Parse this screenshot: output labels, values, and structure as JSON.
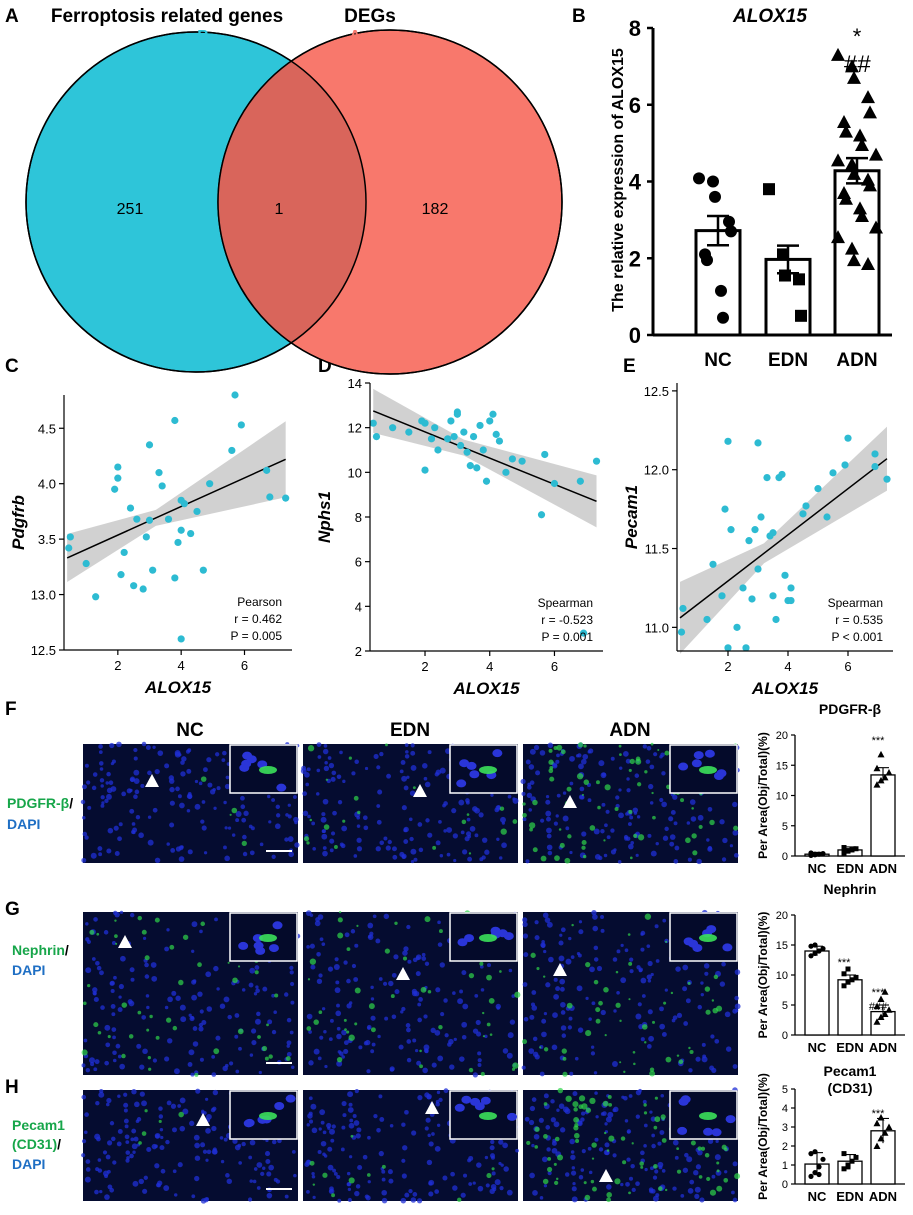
{
  "panel_letters": {
    "A": "A",
    "B": "B",
    "C": "C",
    "D": "D",
    "E": "E",
    "F": "F",
    "G": "G",
    "H": "H"
  },
  "colors": {
    "teal": "#2ec5d9",
    "salmon": "#f8786c",
    "overlap": "#d9655b",
    "blue_text": "#1f6fc4",
    "green_text": "#17a64a",
    "red_text": "#e0453a",
    "dot": "#2dbbd2",
    "band": "#c9c9c9"
  },
  "venn": {
    "left_title": "Ferroptosis related genes",
    "left_letter": "B",
    "right_title": "DEGs",
    "right_letter": "A",
    "left_only": "251",
    "overlap": "1",
    "right_only": "182"
  },
  "chart_data": [
    {
      "id": "B",
      "type": "bar",
      "title": "ALOX15",
      "ylabel": "The relative expression of ALOX15",
      "categories": [
        "NC",
        "EDN",
        "ADN"
      ],
      "values": [
        2.72,
        1.97,
        4.28
      ],
      "sem": [
        0.38,
        0.36,
        0.33
      ],
      "ylim": [
        0,
        8
      ],
      "yticks": [
        "0",
        "2",
        "4",
        "6",
        "8"
      ],
      "points": [
        [
          4.08,
          4.0,
          3.6,
          2.95,
          2.7,
          2.1,
          1.95,
          1.15,
          0.45
        ],
        [
          3.8,
          2.1,
          1.55,
          1.45,
          0.5
        ],
        [
          7.3,
          7.0,
          6.7,
          6.2,
          5.8,
          5.55,
          5.3,
          5.2,
          4.95,
          4.7,
          4.55,
          4.45,
          4.2,
          4.05,
          3.9,
          3.7,
          3.55,
          3.3,
          3.1,
          2.8,
          2.55,
          2.25,
          1.95,
          1.85
        ]
      ],
      "annotations": [
        "*",
        "##"
      ]
    },
    {
      "id": "C",
      "type": "scatter",
      "xlabel": "ALOX15",
      "ylabel": "Pdgfrb",
      "xlim": [
        0.3,
        7.5
      ],
      "ylim": [
        12.5,
        4.8
      ],
      "ytick_labels": [
        "12.5",
        "13.0",
        "3.5",
        "4.0",
        "4.5"
      ],
      "xticks": [
        "2",
        "4",
        "6"
      ],
      "stat": {
        "method": "Pearson",
        "r": "r = 0.462",
        "p": "P = 0.005"
      },
      "fit": {
        "y0": 13.33,
        "y1": 4.22,
        "x0": 0.4,
        "x1": 7.3
      },
      "points": [
        [
          0.45,
          3.42
        ],
        [
          0.5,
          3.52
        ],
        [
          1.0,
          3.28
        ],
        [
          1.3,
          2.98
        ],
        [
          1.9,
          3.95
        ],
        [
          2.0,
          4.15
        ],
        [
          2.0,
          4.05
        ],
        [
          2.1,
          3.18
        ],
        [
          2.2,
          3.38
        ],
        [
          2.4,
          3.78
        ],
        [
          2.5,
          3.08
        ],
        [
          2.6,
          3.68
        ],
        [
          2.8,
          3.05
        ],
        [
          2.9,
          3.52
        ],
        [
          3.0,
          3.67
        ],
        [
          3.0,
          4.35
        ],
        [
          3.1,
          3.22
        ],
        [
          3.3,
          4.1
        ],
        [
          3.4,
          3.98
        ],
        [
          3.6,
          3.68
        ],
        [
          3.8,
          4.57
        ],
        [
          3.8,
          3.15
        ],
        [
          3.9,
          3.47
        ],
        [
          4.0,
          3.85
        ],
        [
          4.0,
          3.58
        ],
        [
          4.0,
          2.6
        ],
        [
          4.1,
          3.82
        ],
        [
          4.3,
          3.55
        ],
        [
          4.5,
          3.75
        ],
        [
          4.7,
          3.22
        ],
        [
          4.9,
          4.0
        ],
        [
          5.6,
          4.3
        ],
        [
          5.7,
          4.8
        ],
        [
          5.9,
          4.53
        ],
        [
          6.7,
          4.12
        ],
        [
          6.8,
          3.88
        ],
        [
          7.3,
          3.87
        ]
      ]
    },
    {
      "id": "D",
      "type": "scatter",
      "xlabel": "ALOX15",
      "ylabel": "Nphs1",
      "xlim": [
        0.3,
        7.5
      ],
      "ylim": [
        2,
        14
      ],
      "yticks": [
        "2",
        "4",
        "6",
        "8",
        "10",
        "12",
        "14"
      ],
      "xticks": [
        "2",
        "4",
        "6"
      ],
      "stat": {
        "method": "Spearman",
        "r": "r = -0.523",
        "p": "P = 0.001"
      },
      "fit": {
        "y0": 12.75,
        "y1": 8.7,
        "x0": 0.4,
        "x1": 7.3
      },
      "points": [
        [
          0.4,
          12.2
        ],
        [
          0.5,
          11.6
        ],
        [
          1.0,
          12.0
        ],
        [
          1.5,
          11.8
        ],
        [
          1.9,
          12.3
        ],
        [
          2.0,
          12.2
        ],
        [
          2.0,
          10.1
        ],
        [
          2.2,
          11.5
        ],
        [
          2.3,
          12.0
        ],
        [
          2.4,
          11.0
        ],
        [
          2.7,
          11.5
        ],
        [
          2.8,
          12.3
        ],
        [
          2.9,
          11.6
        ],
        [
          3.0,
          12.7
        ],
        [
          3.0,
          12.6
        ],
        [
          3.1,
          11.2
        ],
        [
          3.2,
          11.8
        ],
        [
          3.3,
          10.9
        ],
        [
          3.4,
          10.3
        ],
        [
          3.5,
          11.6
        ],
        [
          3.6,
          10.2
        ],
        [
          3.7,
          12.1
        ],
        [
          3.8,
          11.0
        ],
        [
          3.9,
          9.6
        ],
        [
          4.0,
          12.3
        ],
        [
          4.1,
          12.6
        ],
        [
          4.2,
          11.7
        ],
        [
          4.3,
          11.4
        ],
        [
          4.5,
          10.0
        ],
        [
          4.7,
          10.6
        ],
        [
          5.0,
          10.5
        ],
        [
          5.6,
          8.1
        ],
        [
          5.7,
          10.8
        ],
        [
          6.0,
          9.5
        ],
        [
          6.8,
          9.6
        ],
        [
          6.9,
          2.8
        ],
        [
          7.3,
          10.5
        ]
      ]
    },
    {
      "id": "E",
      "type": "scatter",
      "xlabel": "ALOX15",
      "ylabel": "Pecam1",
      "xlim": [
        0.3,
        7.5
      ],
      "ylim": [
        10.85,
        12.55
      ],
      "yticks": [
        "11.0",
        "11.5",
        "12.0",
        "12.5"
      ],
      "xticks": [
        "2",
        "4",
        "6"
      ],
      "stat": {
        "method": "Spearman",
        "r": "r = 0.535",
        "p": "P < 0.001"
      },
      "fit": {
        "y0": 11.06,
        "y1": 12.07,
        "x0": 0.4,
        "x1": 7.3
      },
      "points": [
        [
          0.45,
          10.97
        ],
        [
          0.5,
          11.12
        ],
        [
          1.3,
          11.05
        ],
        [
          1.5,
          11.4
        ],
        [
          1.8,
          11.2
        ],
        [
          1.9,
          11.75
        ],
        [
          2.0,
          12.18
        ],
        [
          2.0,
          10.87
        ],
        [
          2.1,
          11.62
        ],
        [
          2.3,
          11.0
        ],
        [
          2.5,
          11.25
        ],
        [
          2.6,
          10.87
        ],
        [
          2.7,
          11.55
        ],
        [
          2.8,
          11.18
        ],
        [
          2.9,
          11.62
        ],
        [
          3.0,
          12.17
        ],
        [
          3.0,
          11.37
        ],
        [
          3.1,
          11.7
        ],
        [
          3.3,
          11.95
        ],
        [
          3.4,
          11.58
        ],
        [
          3.5,
          11.6
        ],
        [
          3.5,
          11.2
        ],
        [
          3.6,
          11.05
        ],
        [
          3.7,
          11.95
        ],
        [
          3.8,
          11.97
        ],
        [
          3.9,
          11.33
        ],
        [
          4.0,
          11.17
        ],
        [
          4.1,
          11.17
        ],
        [
          4.1,
          11.25
        ],
        [
          4.5,
          11.72
        ],
        [
          4.6,
          11.77
        ],
        [
          5.0,
          11.88
        ],
        [
          5.3,
          11.7
        ],
        [
          5.5,
          11.98
        ],
        [
          5.9,
          12.03
        ],
        [
          6.0,
          12.2
        ],
        [
          6.9,
          12.1
        ],
        [
          6.9,
          12.02
        ],
        [
          7.3,
          11.94
        ]
      ]
    },
    {
      "id": "F",
      "type": "bar",
      "title": "PDGFR-β",
      "ylabel": "Per Area(Obj/Total)(%)",
      "categories": [
        "NC",
        "EDN",
        "ADN"
      ],
      "values": [
        0.3,
        1.0,
        13.4
      ],
      "err": [
        0.3,
        0.5,
        1.2
      ],
      "ylim": [
        0,
        20
      ],
      "yticks": [
        "0",
        "5",
        "10",
        "15",
        "20"
      ],
      "points": [
        [
          0.1,
          0.2,
          0.3,
          0.4,
          0.5,
          0.3
        ],
        [
          0.5,
          0.8,
          1.0,
          1.2,
          1.4,
          0.9
        ],
        [
          11.8,
          12.5,
          13.0,
          13.8,
          14.5,
          16.8
        ]
      ],
      "annotations": [
        "***"
      ]
    },
    {
      "id": "G",
      "type": "bar",
      "title": "Nephrin",
      "ylabel": "Per Area(Obj/Total)(%)",
      "categories": [
        "NC",
        "EDN",
        "ADN"
      ],
      "values": [
        14.0,
        9.2,
        3.9
      ],
      "err": [
        0.8,
        0.8,
        1.1
      ],
      "ylim": [
        0,
        20
      ],
      "yticks": [
        "0",
        "5",
        "10",
        "15",
        "20"
      ],
      "points": [
        [
          13.2,
          13.6,
          14.0,
          14.4,
          14.8,
          15.0
        ],
        [
          8.2,
          8.8,
          9.2,
          9.6,
          10.2,
          11.0
        ],
        [
          2.2,
          3.0,
          3.5,
          4.2,
          4.8,
          6.0,
          7.2
        ]
      ],
      "annotations": [
        "***",
        "***",
        "###"
      ]
    },
    {
      "id": "H",
      "type": "bar",
      "title": "Pecam1",
      "subtitle": "(CD31)",
      "ylabel": "Per Area(Obj/Total)(%)",
      "categories": [
        "NC",
        "EDN",
        "ADN"
      ],
      "values": [
        1.05,
        1.2,
        2.8
      ],
      "err": [
        0.6,
        0.35,
        0.65
      ],
      "ylim": [
        0,
        5
      ],
      "yticks": [
        "0",
        "1",
        "2",
        "3",
        "4",
        "5"
      ],
      "points": [
        [
          0.4,
          0.6,
          0.9,
          1.3,
          1.6,
          1.7,
          0.5
        ],
        [
          0.8,
          1.0,
          1.2,
          1.4,
          1.6,
          0.9
        ],
        [
          2.0,
          2.4,
          2.7,
          3.0,
          3.2,
          3.5
        ]
      ],
      "annotations": [
        "***"
      ]
    }
  ],
  "micrographs": {
    "columns": [
      "NC",
      "EDN",
      "ADN"
    ],
    "rows": [
      {
        "marker": "PDGFR-β",
        "sep": "/",
        "stain": "DAPI"
      },
      {
        "marker": "Nephrin",
        "sep": "/",
        "stain": "DAPI"
      },
      {
        "marker": "Pecam1",
        "marker2": "(CD31)",
        "sep": "/",
        "stain": "DAPI"
      }
    ]
  }
}
